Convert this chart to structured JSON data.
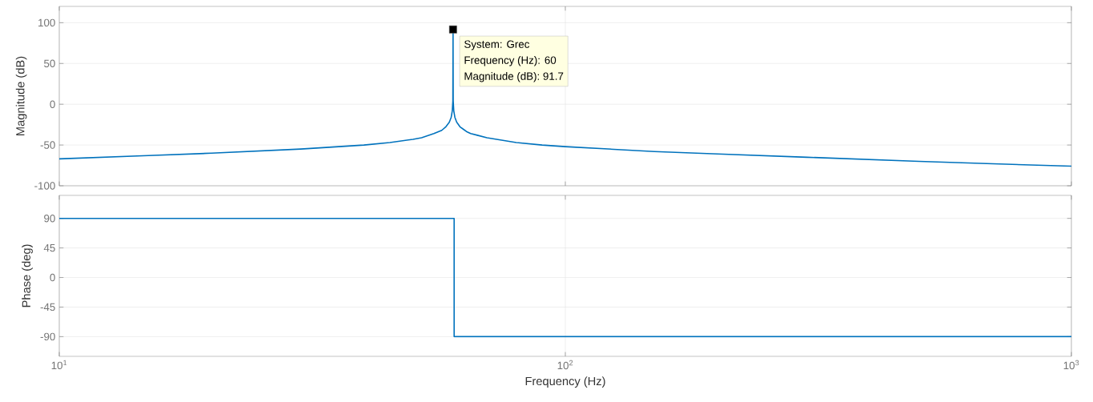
{
  "chart_data": [
    {
      "type": "line",
      "ylabel": "Magnitude (dB)",
      "log": "x",
      "grid": true,
      "tick_labels": "y",
      "xlim": [
        10,
        1000
      ],
      "xticks": [
        {
          "value": 10,
          "label": null
        },
        {
          "value": 100,
          "label": null
        },
        {
          "value": 1000,
          "label": null
        }
      ],
      "ylim": [
        -100,
        120
      ],
      "yticks": [
        -100,
        -50,
        0,
        50,
        100
      ],
      "series": [
        {
          "color": "#0072bd",
          "x": [
            10,
            15,
            20,
            30,
            40,
            45,
            50,
            52,
            55,
            56,
            57,
            58,
            59,
            59.5,
            59.8,
            59.95,
            60,
            60.05,
            60.2,
            60.5,
            61,
            62,
            63,
            64,
            65,
            67,
            70,
            80,
            90,
            100,
            150,
            200,
            300,
            500,
            700,
            1000
          ],
          "values": [
            -67,
            -63,
            -60,
            -55,
            -50,
            -47,
            -43,
            -41,
            -36,
            -34,
            -32,
            -28,
            -22,
            -16,
            -8,
            4,
            91.7,
            4,
            -8,
            -16,
            -22,
            -28,
            -31,
            -34,
            -36,
            -38,
            -41,
            -47,
            -50,
            -52,
            -58,
            -61,
            -65,
            -70,
            -73,
            -76
          ]
        }
      ],
      "annotations": [
        {
          "text": "System: Grec",
          "x": 60,
          "y": 91.7
        },
        "Frequency (Hz): 60",
        "Magnitude (dB): 91.7"
      ]
    },
    {
      "type": "line",
      "xlabel": "Frequency (Hz)",
      "ylabel": "Phase (deg)",
      "log": "x",
      "grid": true,
      "xlim": [
        10,
        1000
      ],
      "xticks": [
        {
          "value": 10,
          "label": "10$^{1}$"
        },
        {
          "value": 100,
          "label": "10$^{2}$"
        },
        {
          "value": 1000,
          "label": "10$^{3}$"
        }
      ],
      "ylim": [
        -120,
        125
      ],
      "yticks": [
        -90,
        -45,
        0,
        45,
        90
      ],
      "series": [
        {
          "color": "#0072bd",
          "x": [
            10,
            60.3,
            60.3,
            1000
          ],
          "values": [
            90,
            90,
            -90,
            -90
          ]
        }
      ]
    }
  ]
}
